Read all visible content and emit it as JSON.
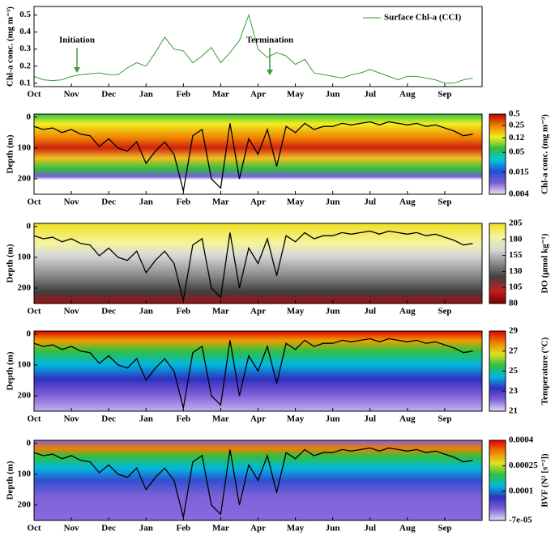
{
  "chart_data": [
    {
      "type": "line",
      "ylabel": "Chl-a conc. (mg m⁻³)",
      "annotations": [
        "Initiation",
        "Termination"
      ],
      "xlim": [
        0,
        12
      ],
      "xticks": [
        {
          "value": 0,
          "label": "Oct"
        },
        {
          "value": 1,
          "label": "Nov"
        },
        {
          "value": 2,
          "label": "Dec"
        },
        {
          "value": 3,
          "label": "Jan"
        },
        {
          "value": 4,
          "label": "Feb"
        },
        {
          "value": 5,
          "label": "Mar"
        },
        {
          "value": 6,
          "label": "Apr"
        },
        {
          "value": 7,
          "label": "May"
        },
        {
          "value": 8,
          "label": "Jun"
        },
        {
          "value": 9,
          "label": "Jul"
        },
        {
          "value": 10,
          "label": "Aug"
        },
        {
          "value": 11,
          "label": "Sep"
        }
      ],
      "ylim": [
        0.08,
        0.55
      ],
      "yticks": [
        0.1,
        0.2,
        0.3,
        0.4,
        0.5
      ],
      "x": [
        0,
        0.25,
        0.5,
        0.75,
        1,
        1.25,
        1.5,
        1.75,
        2,
        2.25,
        2.5,
        2.75,
        3,
        3.25,
        3.5,
        3.75,
        4,
        4.25,
        4.5,
        4.75,
        5,
        5.25,
        5.5,
        5.75,
        6,
        6.25,
        6.5,
        6.75,
        7,
        7.25,
        7.5,
        7.75,
        8,
        8.25,
        8.5,
        8.75,
        9,
        9.25,
        9.5,
        9.75,
        10,
        10.25,
        10.5,
        10.75,
        11,
        11.25,
        11.5,
        11.75
      ],
      "series": [
        {
          "name": "Surface Chl-a (CCI)",
          "color": "#3a9a3a",
          "values": [
            0.14,
            0.12,
            0.115,
            0.12,
            0.14,
            0.15,
            0.155,
            0.16,
            0.15,
            0.15,
            0.19,
            0.22,
            0.2,
            0.28,
            0.37,
            0.3,
            0.29,
            0.22,
            0.26,
            0.31,
            0.22,
            0.28,
            0.35,
            0.5,
            0.3,
            0.25,
            0.28,
            0.26,
            0.21,
            0.24,
            0.16,
            0.15,
            0.14,
            0.13,
            0.15,
            0.16,
            0.18,
            0.16,
            0.14,
            0.12,
            0.14,
            0.14,
            0.13,
            0.12,
            0.1,
            0.1,
            0.12,
            0.13
          ]
        }
      ]
    },
    {
      "type": "heatmap",
      "ylabel": "Depth (m)",
      "colorbar_label": "Chl-a conc. (mg m⁻³)",
      "xlim": [
        0,
        12
      ],
      "xticks": [
        {
          "value": 0,
          "label": "Oct"
        },
        {
          "value": 1,
          "label": "Nov"
        },
        {
          "value": 2,
          "label": "Dec"
        },
        {
          "value": 3,
          "label": "Jan"
        },
        {
          "value": 4,
          "label": "Feb"
        },
        {
          "value": 5,
          "label": "Mar"
        },
        {
          "value": 6,
          "label": "Apr"
        },
        {
          "value": 7,
          "label": "May"
        },
        {
          "value": 8,
          "label": "Jun"
        },
        {
          "value": 9,
          "label": "Jul"
        },
        {
          "value": 10,
          "label": "Aug"
        },
        {
          "value": 11,
          "label": "Sep"
        }
      ],
      "ylim": [
        250,
        -10
      ],
      "yticks": [
        0,
        100,
        200
      ],
      "clim": [
        0.004,
        0.5
      ],
      "clog": true,
      "cticks": [
        0.004,
        0.015,
        0.05,
        0.12,
        0.25,
        0.5
      ],
      "colormap": [
        "#ece4fa",
        "#7b5cd6",
        "#1f4fd8",
        "#00c8e0",
        "#30c040",
        "#f0f020",
        "#f08000",
        "#c00000"
      ],
      "x": [
        0,
        0.25,
        0.5,
        0.75,
        1,
        1.25,
        1.5,
        1.75,
        2,
        2.25,
        2.5,
        2.75,
        3,
        3.25,
        3.5,
        3.75,
        4,
        4.25,
        4.5,
        4.75,
        5,
        5.25,
        5.5,
        5.75,
        6,
        6.25,
        6.5,
        6.75,
        7,
        7.25,
        7.5,
        7.75,
        8,
        8.25,
        8.5,
        8.75,
        9,
        9.25,
        9.5,
        9.75,
        10,
        10.25,
        10.5,
        10.75,
        11,
        11.25,
        11.5,
        11.75
      ],
      "series": [
        {
          "color": "#000000",
          "values": [
            30,
            40,
            35,
            50,
            40,
            55,
            60,
            95,
            70,
            100,
            110,
            80,
            150,
            110,
            80,
            120,
            240,
            60,
            40,
            200,
            230,
            20,
            200,
            70,
            120,
            40,
            160,
            30,
            50,
            20,
            40,
            30,
            30,
            20,
            25,
            20,
            15,
            25,
            15,
            20,
            25,
            20,
            30,
            25,
            35,
            45,
            60,
            55
          ]
        }
      ]
    },
    {
      "type": "heatmap",
      "ylabel": "Depth (m)",
      "colorbar_label": "DO (μmol kg⁻¹)",
      "xlim": [
        0,
        12
      ],
      "xticks": [
        {
          "value": 0,
          "label": "Oct"
        },
        {
          "value": 1,
          "label": "Nov"
        },
        {
          "value": 2,
          "label": "Dec"
        },
        {
          "value": 3,
          "label": "Jan"
        },
        {
          "value": 4,
          "label": "Feb"
        },
        {
          "value": 5,
          "label": "Mar"
        },
        {
          "value": 6,
          "label": "Apr"
        },
        {
          "value": 7,
          "label": "May"
        },
        {
          "value": 8,
          "label": "Jun"
        },
        {
          "value": 9,
          "label": "Jul"
        },
        {
          "value": 10,
          "label": "Aug"
        },
        {
          "value": 11,
          "label": "Sep"
        }
      ],
      "ylim": [
        250,
        -10
      ],
      "yticks": [
        0,
        100,
        200
      ],
      "clim": [
        80,
        205
      ],
      "clog": false,
      "cticks": [
        80,
        105,
        130,
        155,
        180,
        205
      ],
      "colormap": [
        "#7a0000",
        "#c02020",
        "#404040",
        "#8a8a8a",
        "#d8d8d8",
        "#f4f4a0",
        "#f0e020"
      ],
      "x": [
        0,
        0.25,
        0.5,
        0.75,
        1,
        1.25,
        1.5,
        1.75,
        2,
        2.25,
        2.5,
        2.75,
        3,
        3.25,
        3.5,
        3.75,
        4,
        4.25,
        4.5,
        4.75,
        5,
        5.25,
        5.5,
        5.75,
        6,
        6.25,
        6.5,
        6.75,
        7,
        7.25,
        7.5,
        7.75,
        8,
        8.25,
        8.5,
        8.75,
        9,
        9.25,
        9.5,
        9.75,
        10,
        10.25,
        10.5,
        10.75,
        11,
        11.25,
        11.5,
        11.75
      ],
      "series": [
        {
          "color": "#000000",
          "values": [
            30,
            40,
            35,
            50,
            40,
            55,
            60,
            95,
            70,
            100,
            110,
            80,
            150,
            110,
            80,
            120,
            240,
            60,
            40,
            200,
            230,
            20,
            200,
            70,
            120,
            40,
            160,
            30,
            50,
            20,
            40,
            30,
            30,
            20,
            25,
            20,
            15,
            25,
            15,
            20,
            25,
            20,
            30,
            25,
            35,
            45,
            60,
            55
          ]
        }
      ]
    },
    {
      "type": "heatmap",
      "ylabel": "Depth (m)",
      "colorbar_label": "Temperature (°C)",
      "xlim": [
        0,
        12
      ],
      "xticks": [
        {
          "value": 0,
          "label": "Oct"
        },
        {
          "value": 1,
          "label": "Nov"
        },
        {
          "value": 2,
          "label": "Dec"
        },
        {
          "value": 3,
          "label": "Jan"
        },
        {
          "value": 4,
          "label": "Feb"
        },
        {
          "value": 5,
          "label": "Mar"
        },
        {
          "value": 6,
          "label": "Apr"
        },
        {
          "value": 7,
          "label": "May"
        },
        {
          "value": 8,
          "label": "Jun"
        },
        {
          "value": 9,
          "label": "Jul"
        },
        {
          "value": 10,
          "label": "Aug"
        },
        {
          "value": 11,
          "label": "Sep"
        }
      ],
      "ylim": [
        250,
        -10
      ],
      "yticks": [
        0,
        100,
        200
      ],
      "clim": [
        21,
        29
      ],
      "clog": false,
      "cticks": [
        21,
        23,
        25,
        27,
        29
      ],
      "colormap": [
        "#e4dcf8",
        "#8060d8",
        "#3030c0",
        "#00b8e0",
        "#30c040",
        "#e0e020",
        "#f08000",
        "#e00000"
      ],
      "x": [
        0,
        0.25,
        0.5,
        0.75,
        1,
        1.25,
        1.5,
        1.75,
        2,
        2.25,
        2.5,
        2.75,
        3,
        3.25,
        3.5,
        3.75,
        4,
        4.25,
        4.5,
        4.75,
        5,
        5.25,
        5.5,
        5.75,
        6,
        6.25,
        6.5,
        6.75,
        7,
        7.25,
        7.5,
        7.75,
        8,
        8.25,
        8.5,
        8.75,
        9,
        9.25,
        9.5,
        9.75,
        10,
        10.25,
        10.5,
        10.75,
        11,
        11.25,
        11.5,
        11.75
      ],
      "series": [
        {
          "color": "#000000",
          "values": [
            30,
            40,
            35,
            50,
            40,
            55,
            60,
            95,
            70,
            100,
            110,
            80,
            150,
            110,
            80,
            120,
            240,
            60,
            40,
            200,
            230,
            20,
            200,
            70,
            120,
            40,
            160,
            30,
            50,
            20,
            40,
            30,
            30,
            20,
            25,
            20,
            15,
            25,
            15,
            20,
            25,
            20,
            30,
            25,
            35,
            45,
            60,
            55
          ]
        }
      ]
    },
    {
      "type": "heatmap",
      "ylabel": "Depth (m)",
      "colorbar_label": "BVF (N² [s⁻²])",
      "xlim": [
        0,
        12
      ],
      "xticks": [
        {
          "value": 0,
          "label": "Oct"
        },
        {
          "value": 1,
          "label": "Nov"
        },
        {
          "value": 2,
          "label": "Dec"
        },
        {
          "value": 3,
          "label": "Jan"
        },
        {
          "value": 4,
          "label": "Feb"
        },
        {
          "value": 5,
          "label": "Mar"
        },
        {
          "value": 6,
          "label": "Apr"
        },
        {
          "value": 7,
          "label": "May"
        },
        {
          "value": 8,
          "label": "Jun"
        },
        {
          "value": 9,
          "label": "Jul"
        },
        {
          "value": 10,
          "label": "Aug"
        },
        {
          "value": 11,
          "label": "Sep"
        }
      ],
      "ylim": [
        250,
        -10
      ],
      "yticks": [
        0,
        100,
        200
      ],
      "clim": [
        -7e-05,
        0.0004
      ],
      "clog": false,
      "cticks": [
        {
          "value": -7e-05,
          "label": "-7e-05"
        },
        0.0001,
        0.00025,
        0.0004
      ],
      "colormap": [
        "#e4dcf8",
        "#8060d8",
        "#3030c0",
        "#00b8e0",
        "#30c040",
        "#e0e020",
        "#f08000",
        "#e00000"
      ],
      "x": [
        0,
        0.25,
        0.5,
        0.75,
        1,
        1.25,
        1.5,
        1.75,
        2,
        2.25,
        2.5,
        2.75,
        3,
        3.25,
        3.5,
        3.75,
        4,
        4.25,
        4.5,
        4.75,
        5,
        5.25,
        5.5,
        5.75,
        6,
        6.25,
        6.5,
        6.75,
        7,
        7.25,
        7.5,
        7.75,
        8,
        8.25,
        8.5,
        8.75,
        9,
        9.25,
        9.5,
        9.75,
        10,
        10.25,
        10.5,
        10.75,
        11,
        11.25,
        11.5,
        11.75
      ],
      "series": [
        {
          "color": "#000000",
          "values": [
            30,
            40,
            35,
            50,
            40,
            55,
            60,
            95,
            70,
            100,
            110,
            80,
            150,
            110,
            80,
            120,
            240,
            60,
            40,
            200,
            230,
            20,
            200,
            70,
            120,
            40,
            160,
            30,
            50,
            20,
            40,
            30,
            30,
            20,
            25,
            20,
            15,
            25,
            15,
            20,
            25,
            20,
            30,
            25,
            35,
            45,
            60,
            55
          ]
        }
      ]
    }
  ]
}
